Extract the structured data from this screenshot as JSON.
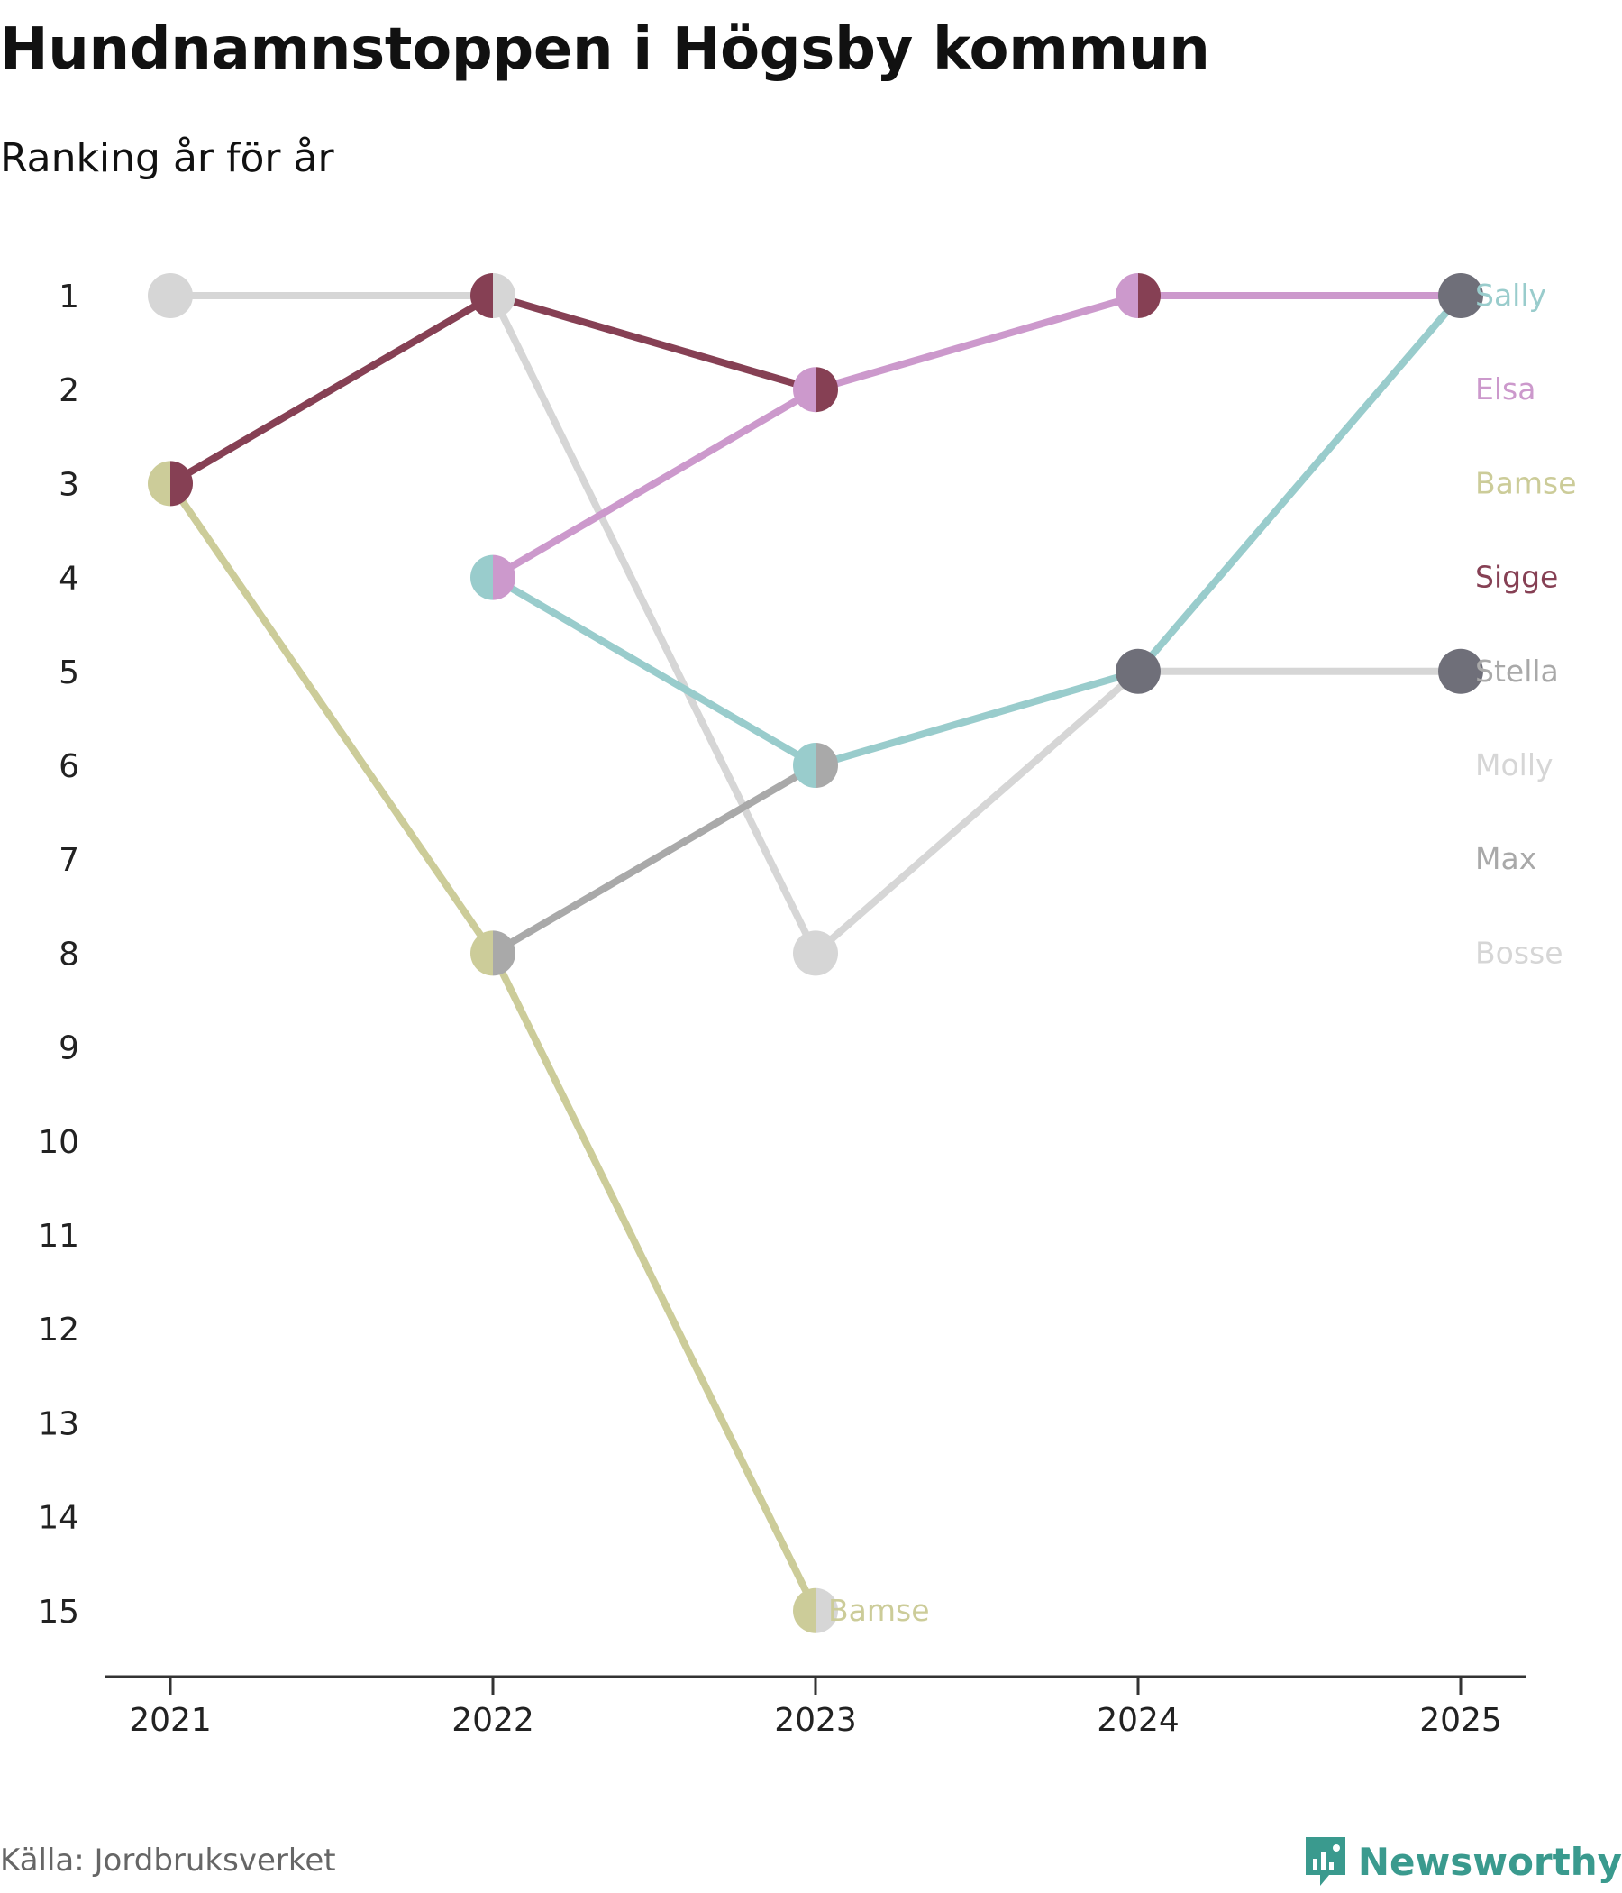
{
  "title": "Hundnamnstoppen i Högsby kommun",
  "subtitle": "Ranking år för år",
  "source": "Källa: Jordbruksverket",
  "brand": {
    "name": "Newsworthy",
    "icon": "newsworthy-logo-icon",
    "color": "#3a9a8e"
  },
  "chart_data": {
    "type": "line",
    "title": "Hundnamnstoppen i Högsby kommun",
    "subtitle": "Ranking år för år",
    "x": [
      "2021",
      "2022",
      "2023",
      "2024",
      "2025"
    ],
    "y_ticks": [
      "1",
      "2",
      "3",
      "4",
      "5",
      "6",
      "7",
      "8",
      "9",
      "10",
      "11",
      "12",
      "13",
      "14",
      "15"
    ],
    "ylim": [
      1,
      15
    ],
    "y_inverted": true,
    "grid": false,
    "series": [
      {
        "name": "Bosse",
        "color": "#d6d6d6",
        "values": [
          1,
          1,
          8,
          5,
          null
        ]
      },
      {
        "name": "Max",
        "color": "#a9a9a9",
        "values": [
          null,
          8,
          6,
          null,
          null
        ]
      },
      {
        "name": "Molly",
        "color": "#d6d6d6",
        "values": [
          null,
          null,
          null,
          5,
          5
        ]
      },
      {
        "name": "Bamse",
        "color": "#cccc99",
        "values": [
          3,
          8,
          15,
          null,
          null
        ]
      },
      {
        "name": "Sally",
        "color": "#99cccc",
        "values": [
          null,
          4,
          6,
          5,
          1
        ]
      },
      {
        "name": "Elsa",
        "color": "#cc99cc",
        "values": [
          null,
          4,
          2,
          1,
          1
        ]
      },
      {
        "name": "Sigge",
        "color": "#864054",
        "values": [
          3,
          1,
          2,
          null,
          null
        ]
      },
      {
        "name": "Stella",
        "color": "#6f6f79",
        "values": [
          null,
          null,
          null,
          null,
          null
        ]
      }
    ],
    "markers": [
      {
        "x": "2021",
        "y": 1,
        "left": "#d6d6d6",
        "right": "#d6d6d6"
      },
      {
        "x": "2021",
        "y": 3,
        "left": "#cccc99",
        "right": "#864054"
      },
      {
        "x": "2022",
        "y": 1,
        "left": "#864054",
        "right": "#d6d6d6"
      },
      {
        "x": "2022",
        "y": 4,
        "left": "#99cccc",
        "right": "#cc99cc"
      },
      {
        "x": "2022",
        "y": 8,
        "left": "#cccc99",
        "right": "#a9a9a9"
      },
      {
        "x": "2023",
        "y": 2,
        "left": "#cc99cc",
        "right": "#864054"
      },
      {
        "x": "2023",
        "y": 6,
        "left": "#99cccc",
        "right": "#a9a9a9"
      },
      {
        "x": "2023",
        "y": 8,
        "left": "#d6d6d6",
        "right": "#d6d6d6"
      },
      {
        "x": "2023",
        "y": 15,
        "left": "#cccc99",
        "right": "#d6d6d6"
      },
      {
        "x": "2024",
        "y": 1,
        "left": "#cc99cc",
        "right": "#864054"
      },
      {
        "x": "2024",
        "y": 5,
        "left": "#6f6f79",
        "right": "#6f6f79"
      },
      {
        "x": "2025",
        "y": 1,
        "left": "#6f6f79",
        "right": "#6f6f79"
      },
      {
        "x": "2025",
        "y": 5,
        "left": "#6f6f79",
        "right": "#6f6f79"
      }
    ],
    "legend": [
      {
        "label": "Sally",
        "color": "#99cccc",
        "rank": 1
      },
      {
        "label": "Elsa",
        "color": "#cc99cc",
        "rank": 2
      },
      {
        "label": "Bamse",
        "color": "#cccc99",
        "rank": 3
      },
      {
        "label": "Sigge",
        "color": "#864054",
        "rank": 4
      },
      {
        "label": "Stella",
        "color": "#a9a9a9",
        "rank": 5
      },
      {
        "label": "Molly",
        "color": "#d6d6d6",
        "rank": 6
      },
      {
        "label": "Max",
        "color": "#a9a9a9",
        "rank": 7
      },
      {
        "label": "Bosse",
        "color": "#d6d6d6",
        "rank": 8
      }
    ],
    "annotations": [
      {
        "text": "Bamse",
        "x": "2023",
        "y": 15,
        "color": "#cccc99"
      }
    ]
  }
}
